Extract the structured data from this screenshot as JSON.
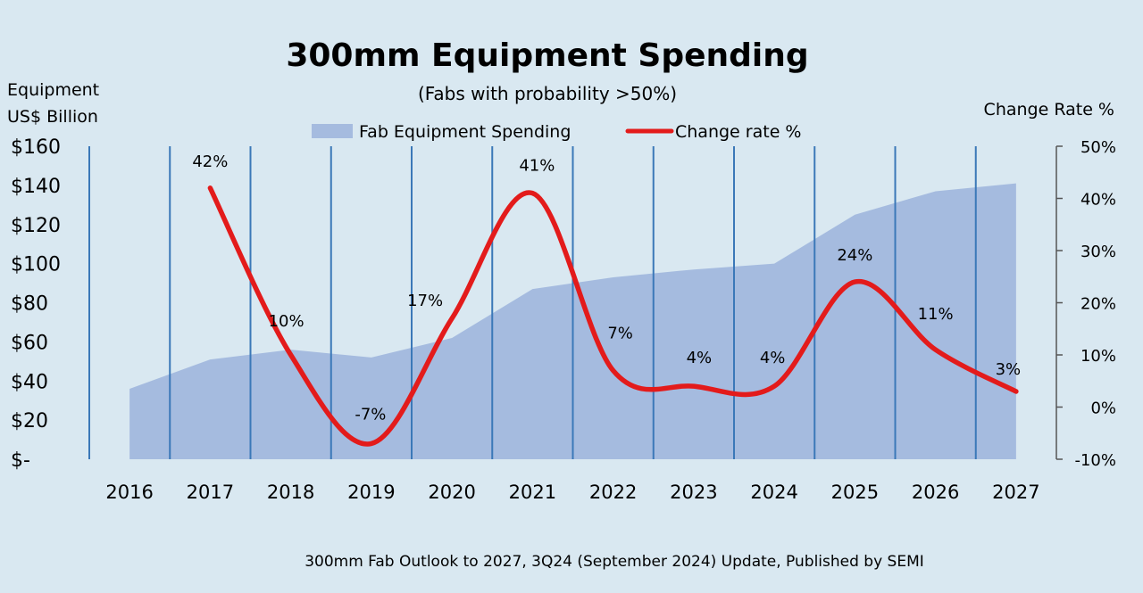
{
  "chart_data": {
    "type": "area+line",
    "title": "300mm Equipment Spending",
    "subtitle": "(Fabs with probability >50%)",
    "left_axis_label_line1": "Equipment",
    "left_axis_label_line2": "US$ Billion",
    "right_axis_label": "Change Rate %",
    "categories": [
      "2016",
      "2017",
      "2018",
      "2019",
      "2020",
      "2021",
      "2022",
      "2023",
      "2024",
      "2025",
      "2026",
      "2027"
    ],
    "left_ticks": [
      "$-",
      "$20",
      "$40",
      "$60",
      "$80",
      "$100",
      "$120",
      "$140",
      "$160"
    ],
    "left_ylim": [
      0,
      160
    ],
    "right_ticks": [
      "-10%",
      "0%",
      "10%",
      "20%",
      "30%",
      "40%",
      "50%"
    ],
    "right_ylim": [
      -10,
      50
    ],
    "series": [
      {
        "name": "Fab Equipment Spending",
        "type": "area",
        "axis": "left",
        "color": "#a5bbdf",
        "values": [
          36,
          51,
          56,
          52,
          62,
          87,
          93,
          97,
          100,
          125,
          137,
          141
        ]
      },
      {
        "name": "Change rate %",
        "type": "line",
        "axis": "right",
        "color": "#e31b1b",
        "values": [
          null,
          42,
          10,
          -7,
          17,
          41,
          7,
          4,
          4,
          24,
          11,
          3
        ],
        "labels": [
          "",
          "42%",
          "10%",
          "-7%",
          "17%",
          "41%",
          "7%",
          "4%",
          "4%",
          "24%",
          "11%",
          "3%"
        ]
      }
    ],
    "legend": [
      "Fab Equipment Spending",
      "Change rate %"
    ],
    "legend_position": "top-center",
    "vertical_gridlines": true,
    "footer": "300mm Fab Outlook to 2027, 3Q24 (September 2024) Update, Published by SEMI"
  },
  "colors": {
    "background": "#d9e8f1",
    "area": "#a5bbdf",
    "line": "#e31b1b",
    "grid": "#3b78b8"
  }
}
